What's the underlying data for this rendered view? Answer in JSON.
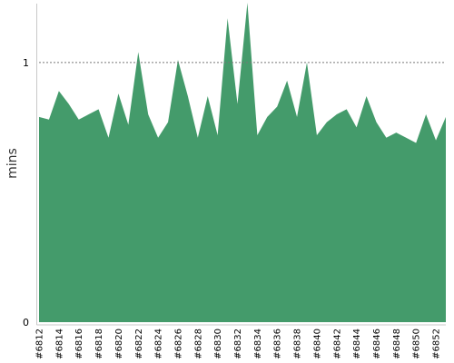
{
  "chart_data": {
    "type": "area",
    "title": "",
    "xlabel": "",
    "ylabel": "mins",
    "ylim": [
      0,
      1.23
    ],
    "y_ticks": [
      {
        "value": 0,
        "label": "0"
      },
      {
        "value": 1,
        "label": "1"
      }
    ],
    "reference_line": {
      "value": 1,
      "style": "dotted"
    },
    "grid": false,
    "legend": "none",
    "fill_color": "#449b6b",
    "x_tick_labels": [
      "#6812",
      "#6814",
      "#6816",
      "#6818",
      "#6820",
      "#6822",
      "#6824",
      "#6826",
      "#6828",
      "#6830",
      "#6832",
      "#6834",
      "#6836",
      "#6838",
      "#6840",
      "#6842",
      "#6844",
      "#6846",
      "#6848",
      "#6850",
      "#6852"
    ],
    "x": [
      "#6812",
      "#6813",
      "#6814",
      "#6815",
      "#6816",
      "#6817",
      "#6818",
      "#6819",
      "#6820",
      "#6821",
      "#6822",
      "#6823",
      "#6824",
      "#6825",
      "#6826",
      "#6827",
      "#6828",
      "#6829",
      "#6830",
      "#6831",
      "#6832",
      "#6833",
      "#6834",
      "#6835",
      "#6836",
      "#6837",
      "#6838",
      "#6839",
      "#6840",
      "#6841",
      "#6842",
      "#6843",
      "#6844",
      "#6845",
      "#6846",
      "#6847",
      "#6848",
      "#6849",
      "#6850",
      "#6851",
      "#6852",
      "#6853"
    ],
    "values": [
      0.79,
      0.78,
      0.89,
      0.84,
      0.78,
      0.8,
      0.82,
      0.71,
      0.88,
      0.76,
      1.04,
      0.8,
      0.71,
      0.77,
      1.01,
      0.87,
      0.71,
      0.87,
      0.72,
      1.17,
      0.84,
      1.23,
      0.72,
      0.79,
      0.83,
      0.93,
      0.79,
      1.0,
      0.72,
      0.77,
      0.8,
      0.82,
      0.75,
      0.87,
      0.77,
      0.71,
      0.73,
      0.71,
      0.69,
      0.8,
      0.7,
      0.79
    ]
  }
}
